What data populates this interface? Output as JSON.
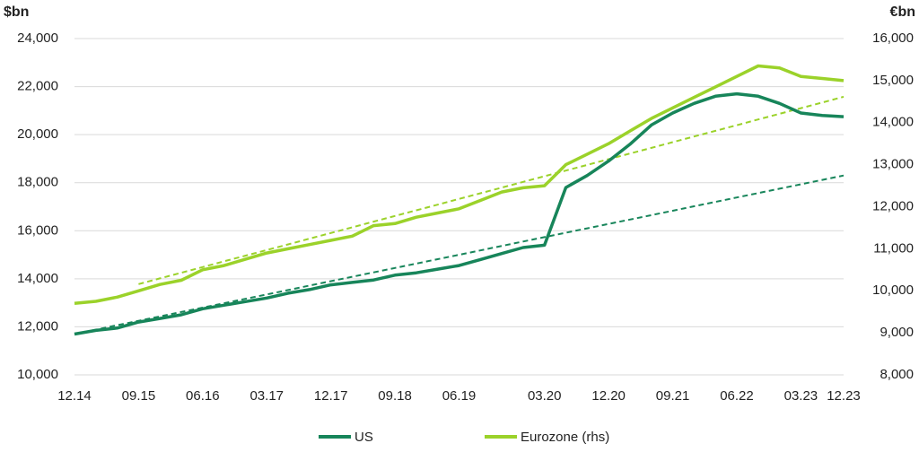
{
  "chart_data": {
    "type": "line",
    "y_label": "$bn",
    "y2_label": "€bn",
    "categories": [
      "12.14",
      null,
      null,
      "09.15",
      null,
      null,
      "06.16",
      null,
      null,
      "03.17",
      null,
      null,
      "12.17",
      null,
      null,
      "09.18",
      null,
      null,
      "06.19",
      null,
      null,
      null,
      "03.20",
      null,
      null,
      "12.20",
      null,
      null,
      "09.21",
      null,
      null,
      "06.22",
      null,
      null,
      "03.23",
      null,
      "12.23"
    ],
    "series": [
      {
        "name": "US",
        "color": "#17855a",
        "axis": "y",
        "values": [
          11700,
          11850,
          11950,
          12200,
          12350,
          12500,
          12750,
          12900,
          13050,
          13200,
          13400,
          13550,
          13750,
          13850,
          13950,
          14150,
          14250,
          14400,
          14550,
          14800,
          15050,
          15300,
          15400,
          17800,
          18300,
          18900,
          19600,
          20400,
          20900,
          21300,
          21600,
          21700,
          21600,
          21300,
          20900,
          20800,
          20750
        ]
      },
      {
        "name": "Eurozone (rhs)",
        "color": "#9bd22a",
        "axis": "y2",
        "values": [
          9700,
          9750,
          9850,
          10000,
          10150,
          10250,
          10500,
          10600,
          10750,
          10900,
          11000,
          11100,
          11200,
          11300,
          11550,
          11600,
          11750,
          11850,
          11950,
          12150,
          12350,
          12450,
          12500,
          13000,
          13250,
          13500,
          13800,
          14100,
          14350,
          14600,
          14850,
          15100,
          15350,
          15300,
          15100,
          15050,
          15000
        ]
      }
    ],
    "trend_lines": [
      {
        "color": "#17855a",
        "axis": "y",
        "values": [
          11700,
          11883,
          12067,
          12250,
          12433,
          12617,
          12800,
          12983,
          13167,
          13350,
          13533,
          13717,
          13900,
          14083,
          14267,
          14450,
          14633,
          14817,
          15000,
          15183,
          15367,
          15550,
          15733,
          15917,
          16100,
          16283,
          16467,
          16650,
          16833,
          17017,
          17200,
          17383,
          17567,
          17750,
          17933,
          18117,
          18300
        ]
      },
      {
        "color": "#9bd22a",
        "axis": "y2",
        "values": [
          null,
          null,
          null,
          10160,
          10295,
          10430,
          10565,
          10700,
          10835,
          10970,
          11105,
          11240,
          11375,
          11510,
          11645,
          11780,
          11915,
          12050,
          12185,
          12320,
          12455,
          12590,
          12725,
          12860,
          12995,
          13130,
          13265,
          13400,
          13535,
          13670,
          13805,
          13940,
          14075,
          14210,
          14345,
          14480,
          14615
        ]
      }
    ],
    "ylim": [
      10000,
      24000
    ],
    "yticks": [
      {
        "value": 10000,
        "label": "10,000"
      },
      {
        "value": 12000,
        "label": "12,000"
      },
      {
        "value": 14000,
        "label": "14,000"
      },
      {
        "value": 16000,
        "label": "16,000"
      },
      {
        "value": 18000,
        "label": "18,000"
      },
      {
        "value": 20000,
        "label": "20,000"
      },
      {
        "value": 22000,
        "label": "22,000"
      },
      {
        "value": 24000,
        "label": "24,000"
      }
    ],
    "y2lim": [
      8000,
      16000
    ],
    "y2ticks": [
      {
        "value": 8000,
        "label": "8,000"
      },
      {
        "value": 9000,
        "label": "9,000"
      },
      {
        "value": 10000,
        "label": "10,000"
      },
      {
        "value": 11000,
        "label": "11,000"
      },
      {
        "value": 12000,
        "label": "12,000"
      },
      {
        "value": 13000,
        "label": "13,000"
      },
      {
        "value": 14000,
        "label": "14,000"
      },
      {
        "value": 15000,
        "label": "15,000"
      },
      {
        "value": 16000,
        "label": "16,000"
      }
    ],
    "grid": true
  }
}
